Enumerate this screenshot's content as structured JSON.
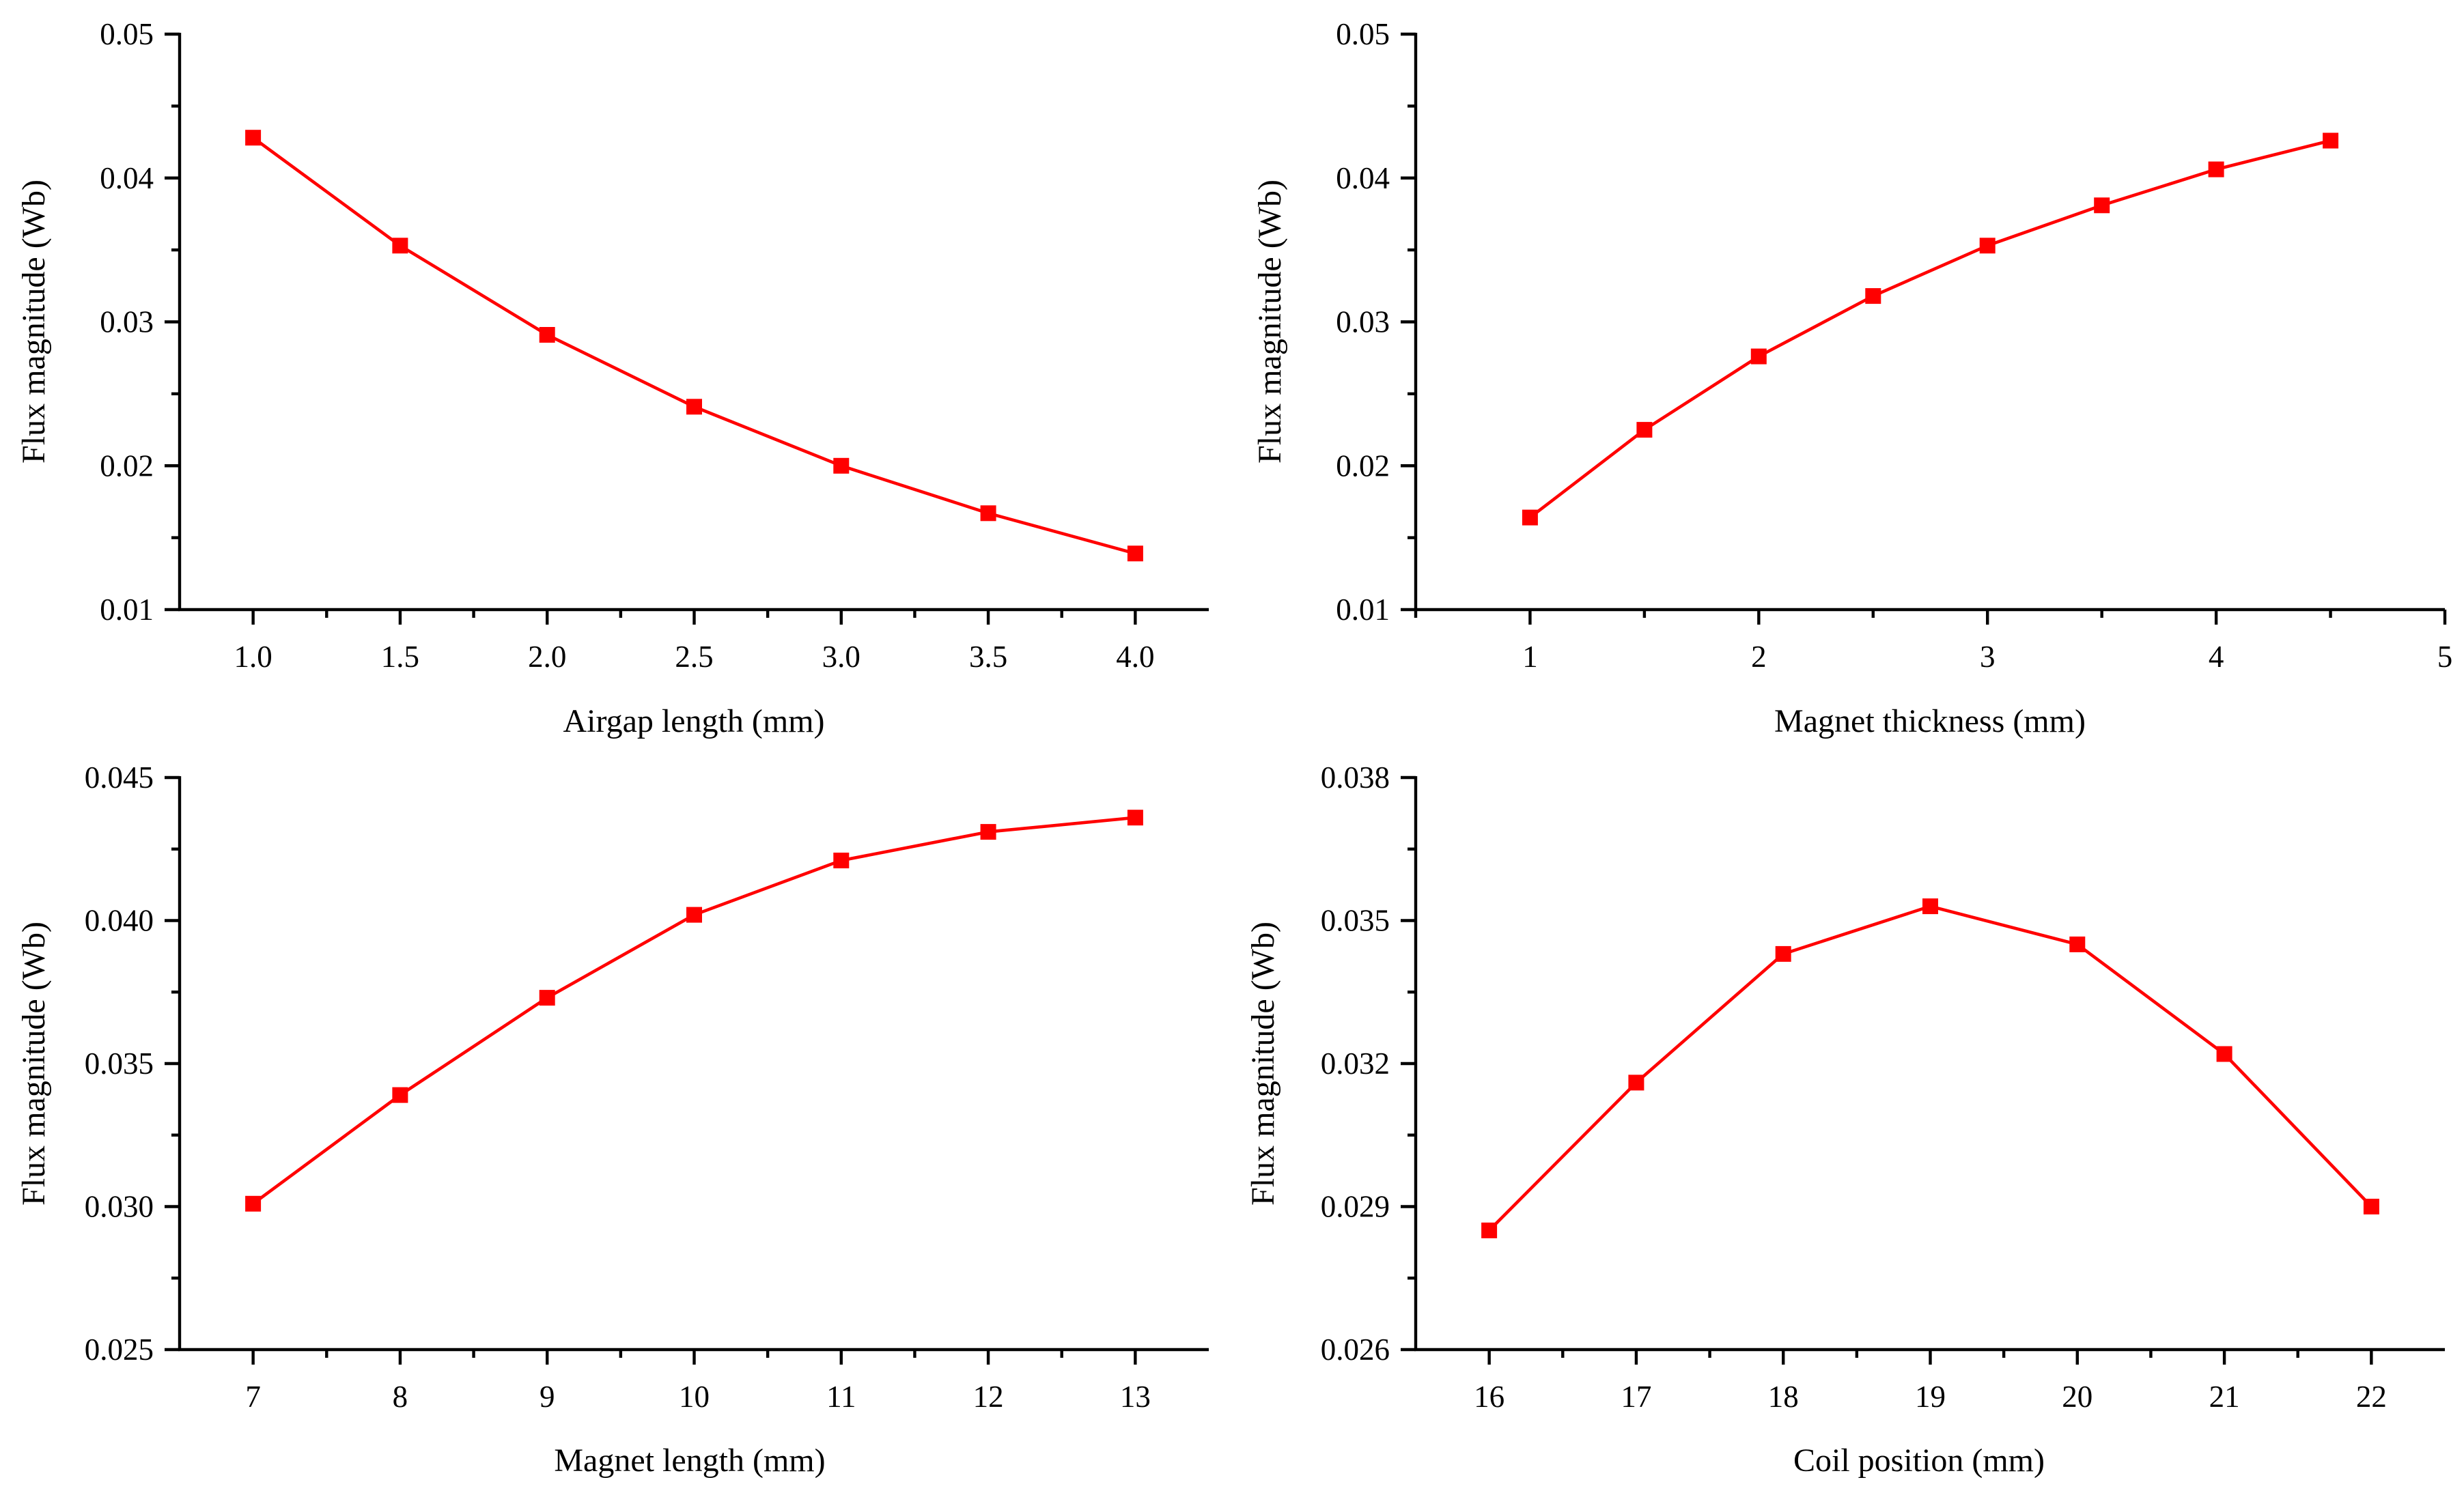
{
  "colors": {
    "series": "#ff0000",
    "axis": "#000000",
    "background": "#ffffff"
  },
  "chart_data": [
    {
      "type": "line",
      "title": "",
      "xlabel": "Airgap length (mm)",
      "ylabel": "Flux magnitude (Wb)",
      "xlim": [
        0.75,
        4.25
      ],
      "ylim": [
        0.01,
        0.05
      ],
      "xticks": [
        1.0,
        1.5,
        2.0,
        2.5,
        3.0,
        3.5,
        4.0
      ],
      "xtick_labels": [
        "1.0",
        "1.5",
        "2.0",
        "2.5",
        "3.0",
        "3.5",
        "4.0"
      ],
      "xminor": [
        1.25,
        1.75,
        2.25,
        2.75,
        3.25,
        3.75
      ],
      "yticks": [
        0.01,
        0.02,
        0.03,
        0.04,
        0.05
      ],
      "ytick_labels": [
        "0.01",
        "0.02",
        "0.03",
        "0.04",
        "0.05"
      ],
      "yminor": [
        0.015,
        0.025,
        0.035,
        0.045
      ],
      "x": [
        1.0,
        1.5,
        2.0,
        2.5,
        3.0,
        3.5,
        4.0
      ],
      "y": [
        0.0428,
        0.0353,
        0.0291,
        0.0241,
        0.02,
        0.0167,
        0.0139
      ]
    },
    {
      "type": "line",
      "title": "",
      "xlabel": "Magnet thickness (mm)",
      "ylabel": "Flux magnitude (Wb)",
      "xlim": [
        0.5,
        5.0
      ],
      "ylim": [
        0.01,
        0.05
      ],
      "xticks": [
        1,
        2,
        3,
        4,
        5
      ],
      "xtick_labels": [
        "1",
        "2",
        "3",
        "4",
        "5"
      ],
      "xminor": [
        0.5,
        1.5,
        2.5,
        3.5,
        4.5
      ],
      "yticks": [
        0.01,
        0.02,
        0.03,
        0.04,
        0.05
      ],
      "ytick_labels": [
        "0.01",
        "0.02",
        "0.03",
        "0.04",
        "0.05"
      ],
      "yminor": [
        0.015,
        0.025,
        0.035,
        0.045
      ],
      "x": [
        1.0,
        1.5,
        2.0,
        2.5,
        3.0,
        3.5,
        4.0,
        4.5
      ],
      "y": [
        0.0164,
        0.0225,
        0.0276,
        0.0318,
        0.0353,
        0.0381,
        0.0406,
        0.0426
      ]
    },
    {
      "type": "line",
      "title": "",
      "xlabel": "Magnet length (mm)",
      "ylabel": "Flux magnitude (Wb)",
      "xlim": [
        6.5,
        13.5
      ],
      "ylim": [
        0.025,
        0.045
      ],
      "xticks": [
        7,
        8,
        9,
        10,
        11,
        12,
        13
      ],
      "xtick_labels": [
        "7",
        "8",
        "9",
        "10",
        "11",
        "12",
        "13"
      ],
      "xminor": [
        7.5,
        8.5,
        9.5,
        10.5,
        11.5,
        12.5
      ],
      "yticks": [
        0.025,
        0.03,
        0.035,
        0.04,
        0.045
      ],
      "ytick_labels": [
        "0.025",
        "0.030",
        "0.035",
        "0.040",
        "0.045"
      ],
      "yminor": [
        0.0275,
        0.0325,
        0.0375,
        0.0425
      ],
      "x": [
        7,
        8,
        9,
        10,
        11,
        12,
        13
      ],
      "y": [
        0.0301,
        0.0339,
        0.0373,
        0.0402,
        0.0421,
        0.0431,
        0.0436
      ]
    },
    {
      "type": "line",
      "title": "",
      "xlabel": "Coil position (mm)",
      "ylabel": "Flux magnitude (Wb)",
      "xlim": [
        15.5,
        22.5
      ],
      "ylim": [
        0.026,
        0.038
      ],
      "xticks": [
        16,
        17,
        18,
        19,
        20,
        21,
        22
      ],
      "xtick_labels": [
        "16",
        "17",
        "18",
        "19",
        "20",
        "21",
        "22"
      ],
      "xminor": [
        16.5,
        17.5,
        18.5,
        19.5,
        20.5,
        21.5
      ],
      "yticks": [
        0.026,
        0.029,
        0.032,
        0.035,
        0.038
      ],
      "ytick_labels": [
        "0.026",
        "0.029",
        "0.032",
        "0.035",
        "0.038"
      ],
      "yminor": [
        0.0275,
        0.0305,
        0.0335,
        0.0365
      ],
      "x": [
        16,
        17,
        18,
        19,
        20,
        21,
        22
      ],
      "y": [
        0.0285,
        0.0316,
        0.0343,
        0.0353,
        0.0345,
        0.0322,
        0.029
      ]
    }
  ]
}
